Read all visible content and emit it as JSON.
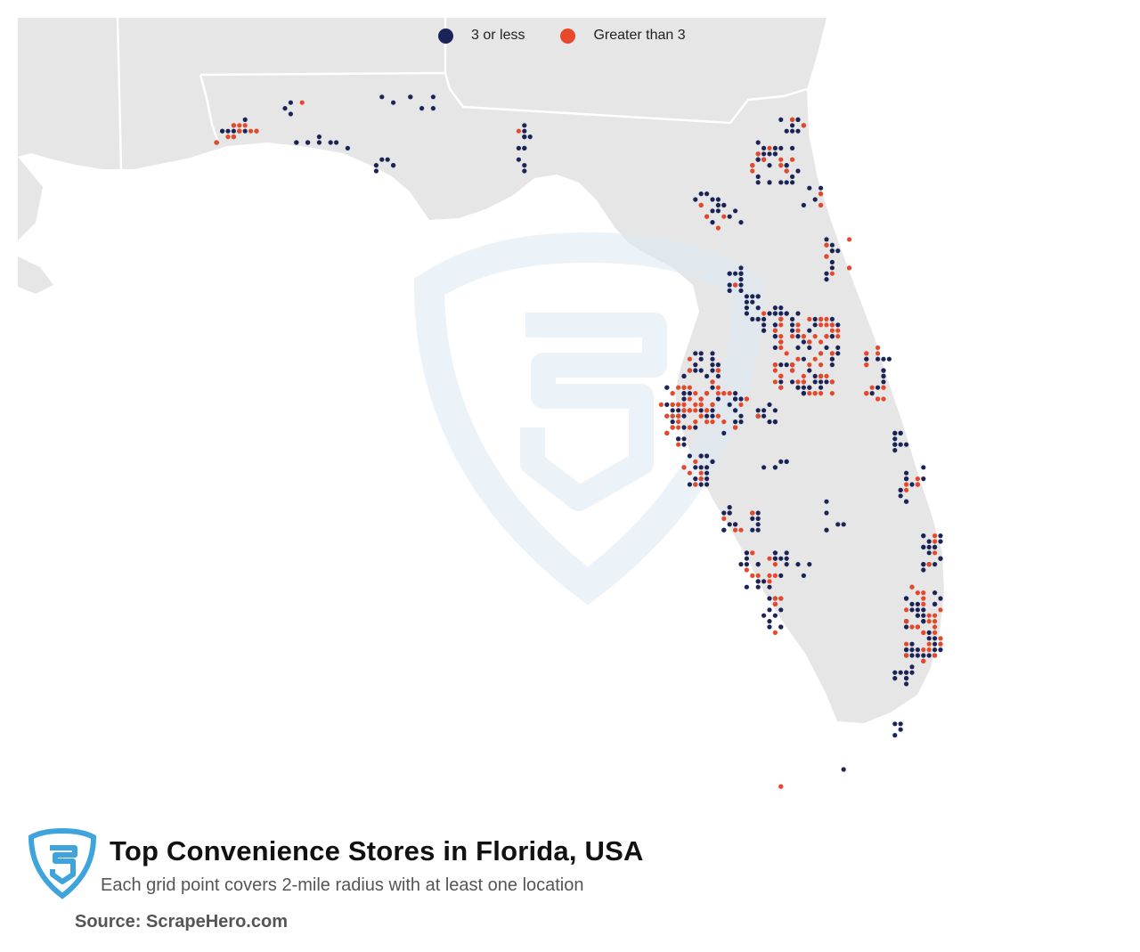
{
  "title": "Top Convenience Stores in Florida, USA",
  "subtitle": "Each grid point covers 2-mile radius with at least one location",
  "source": "Source: ScrapeHero.com",
  "legend": [
    {
      "label": "3 or less",
      "color": "#1b2459"
    },
    {
      "label": "Greater than 3",
      "color": "#e8482a"
    }
  ],
  "colors": {
    "land": "#e6e6e6",
    "state_border": "#ffffff",
    "water": "#ffffff",
    "watermark": "#e3eef5",
    "logo": "#3fa4dc"
  },
  "icons": [
    "scrapehero-shield-logo",
    "scrapehero-watermark"
  ]
}
